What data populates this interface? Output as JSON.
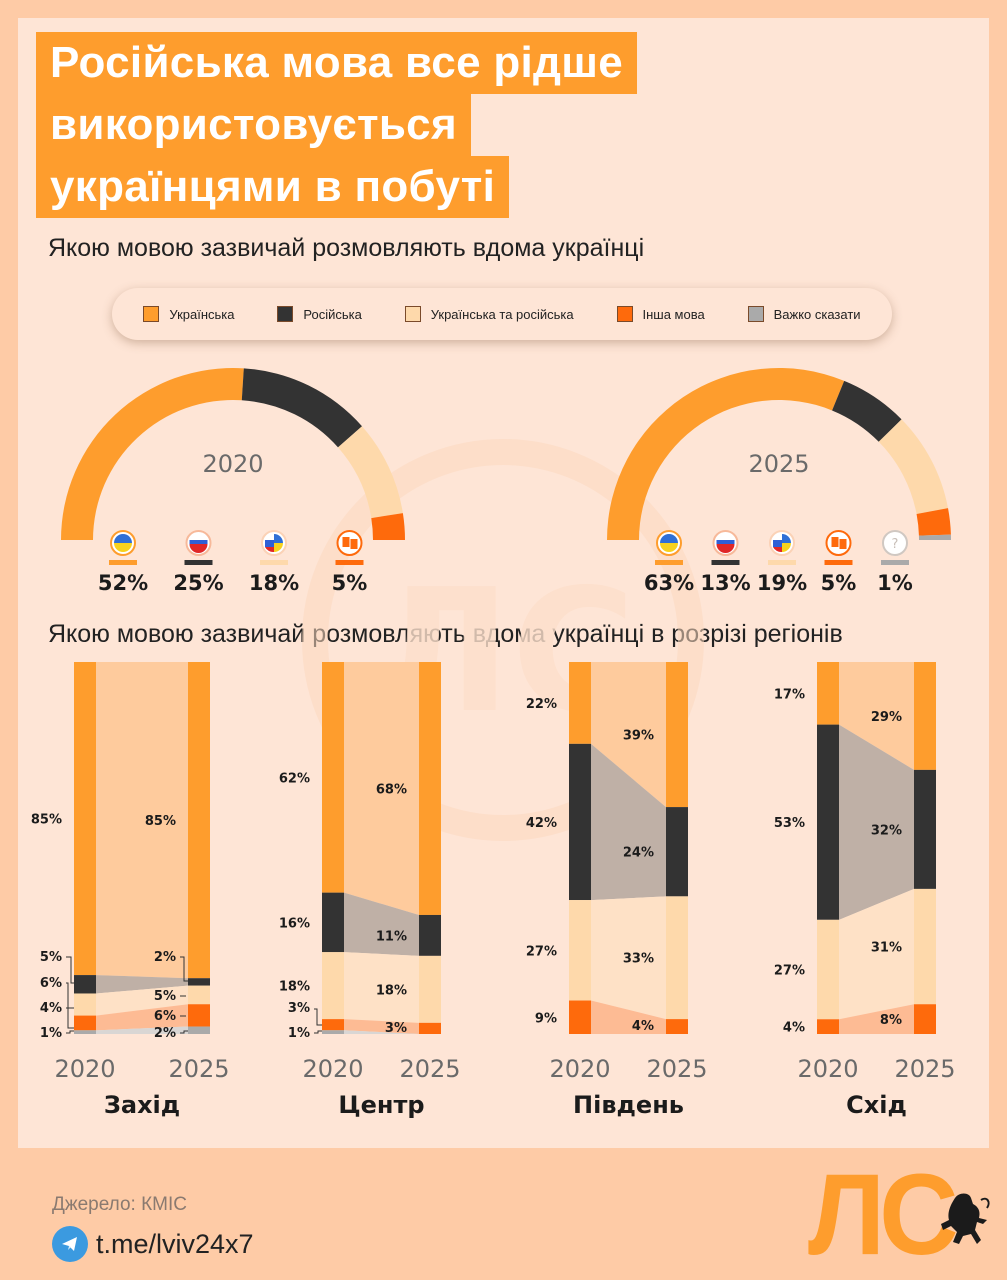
{
  "title_lines": [
    "Російська мова все рідше",
    "використовується",
    "українцями в побуті"
  ],
  "subtitle_national": "Якою мовою зазвичай розмовляють вдома українці",
  "subtitle_regional": "Якою мовою зазвичай розмовляють вдома українці в розрізі регіонів",
  "legend": [
    {
      "label": "Українська",
      "color": "#fe9d2d"
    },
    {
      "label": "Російська",
      "color": "#333333"
    },
    {
      "label": "Українська та російська",
      "color": "#fed9ab"
    },
    {
      "label": "Інша мова",
      "color": "#fe6a0c"
    },
    {
      "label": "Важко сказати",
      "color": "#aaaaaa"
    }
  ],
  "colors": {
    "ukrainian": "#fe9d2d",
    "russian": "#333333",
    "both": "#fed9ab",
    "other": "#fe6a0c",
    "hard_to_say": "#aaaaaa",
    "background": "#fecba6",
    "panel": "#fee5d6"
  },
  "chart_data": [
    {
      "type": "pie",
      "title": "2020",
      "style": "half-donut",
      "categories": [
        "Українська",
        "Російська",
        "Українська та російська",
        "Інша мова"
      ],
      "values": [
        52,
        25,
        18,
        5
      ],
      "labels": [
        "52%",
        "25%",
        "18%",
        "5%"
      ],
      "icons": [
        "ukraine-flag-icon",
        "russia-flag-icon",
        "mixed-flag-icon",
        "translate-icon"
      ]
    },
    {
      "type": "pie",
      "title": "2025",
      "style": "half-donut",
      "categories": [
        "Українська",
        "Російська",
        "Українська та російська",
        "Інша мова",
        "Важко сказати"
      ],
      "values": [
        63,
        13,
        19,
        5,
        1
      ],
      "labels": [
        "63%",
        "13%",
        "19%",
        "5%",
        "1%"
      ],
      "icons": [
        "ukraine-flag-icon",
        "russia-flag-icon",
        "mixed-flag-icon",
        "translate-icon",
        "question-icon"
      ]
    },
    {
      "type": "bar",
      "subtype": "stacked-100-slope",
      "title": "Якою мовою зазвичай розмовляють вдома українці в розрізі регіонів",
      "categories": [
        "2020",
        "2025"
      ],
      "series_order": [
        "Українська",
        "Російська",
        "Українська та російська",
        "Інша мова",
        "Важко сказати"
      ],
      "regions": [
        {
          "name": "Захід",
          "y2020": [
            85,
            5,
            6,
            4,
            1
          ],
          "y2025": [
            85,
            2,
            5,
            6,
            2
          ],
          "labels2020": [
            "85%",
            "5%",
            "6%",
            "4%",
            "1%"
          ],
          "labels2025": [
            "85%",
            "2%",
            "5%",
            "6%",
            "2%"
          ]
        },
        {
          "name": "Центр",
          "y2020": [
            62,
            16,
            18,
            3,
            1
          ],
          "y2025": [
            68,
            11,
            18,
            3,
            0
          ],
          "labels2020": [
            "62%",
            "16%",
            "18%",
            "3%",
            "1%"
          ],
          "labels2025": [
            "68%",
            "11%",
            "18%",
            "3%",
            ""
          ]
        },
        {
          "name": "Південь",
          "y2020": [
            22,
            42,
            27,
            9,
            0
          ],
          "y2025": [
            39,
            24,
            33,
            4,
            0
          ],
          "labels2020": [
            "22%",
            "42%",
            "27%",
            "9%",
            ""
          ],
          "labels2025": [
            "39%",
            "24%",
            "33%",
            "4%",
            ""
          ]
        },
        {
          "name": "Схід",
          "y2020": [
            17,
            53,
            27,
            4,
            0
          ],
          "y2025": [
            29,
            32,
            31,
            8,
            0
          ],
          "labels2020": [
            "17%",
            "53%",
            "27%",
            "4%",
            ""
          ],
          "labels2025": [
            "29%",
            "32%",
            "31%",
            "8%",
            ""
          ]
        }
      ]
    }
  ],
  "footer": {
    "source": "Джерело: КМІС",
    "link": "t.me/lviv24x7",
    "logo": "ЛС"
  }
}
